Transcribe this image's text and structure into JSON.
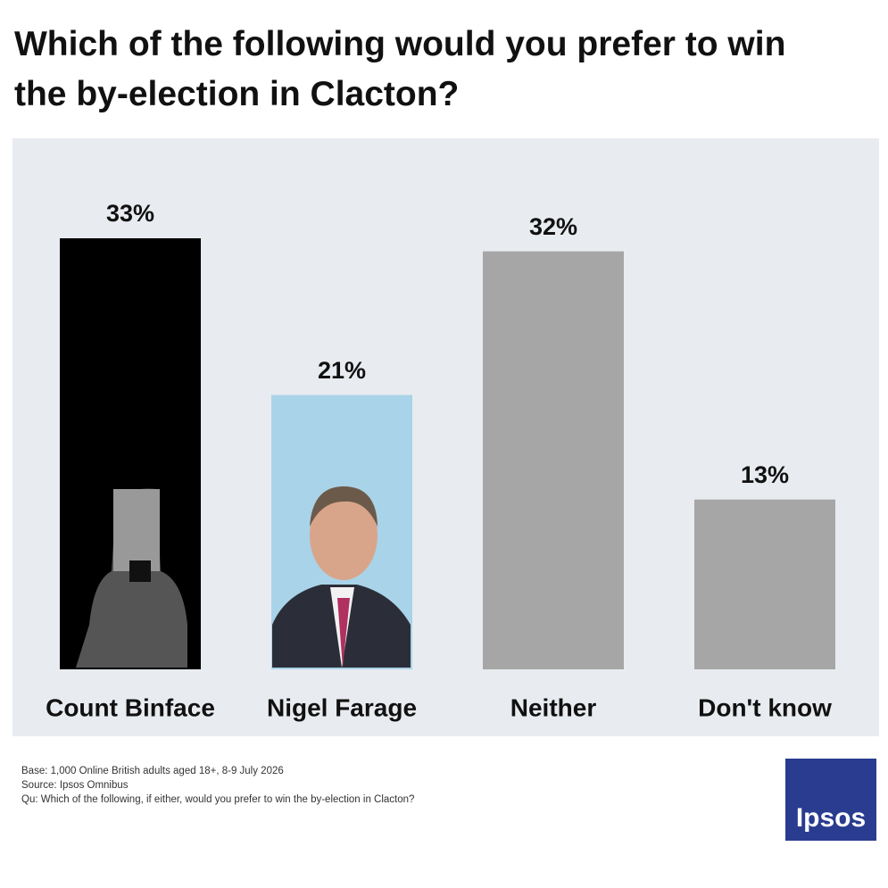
{
  "chart_data": {
    "type": "bar",
    "title": "Which of the following would you prefer to win the by-election in Clacton?",
    "categories": [
      "Count Binface",
      "Nigel Farage",
      "Neither",
      "Don't know"
    ],
    "values": [
      33,
      21,
      32,
      13
    ],
    "value_labels": [
      "33%",
      "21%",
      "32%",
      "13%"
    ],
    "colors": [
      "#000000",
      "#a9d3e8",
      "#a6a6a6",
      "#a6a6a6"
    ],
    "footnotes": [
      "Base: 1,000 Online British adults aged 18+, 8-9 July 2026",
      "Source: Ipsos Omnibus",
      "Qu: Which of the following, if either, would you prefer to win the by-election in Clacton?"
    ],
    "logo": "Ipsos"
  }
}
